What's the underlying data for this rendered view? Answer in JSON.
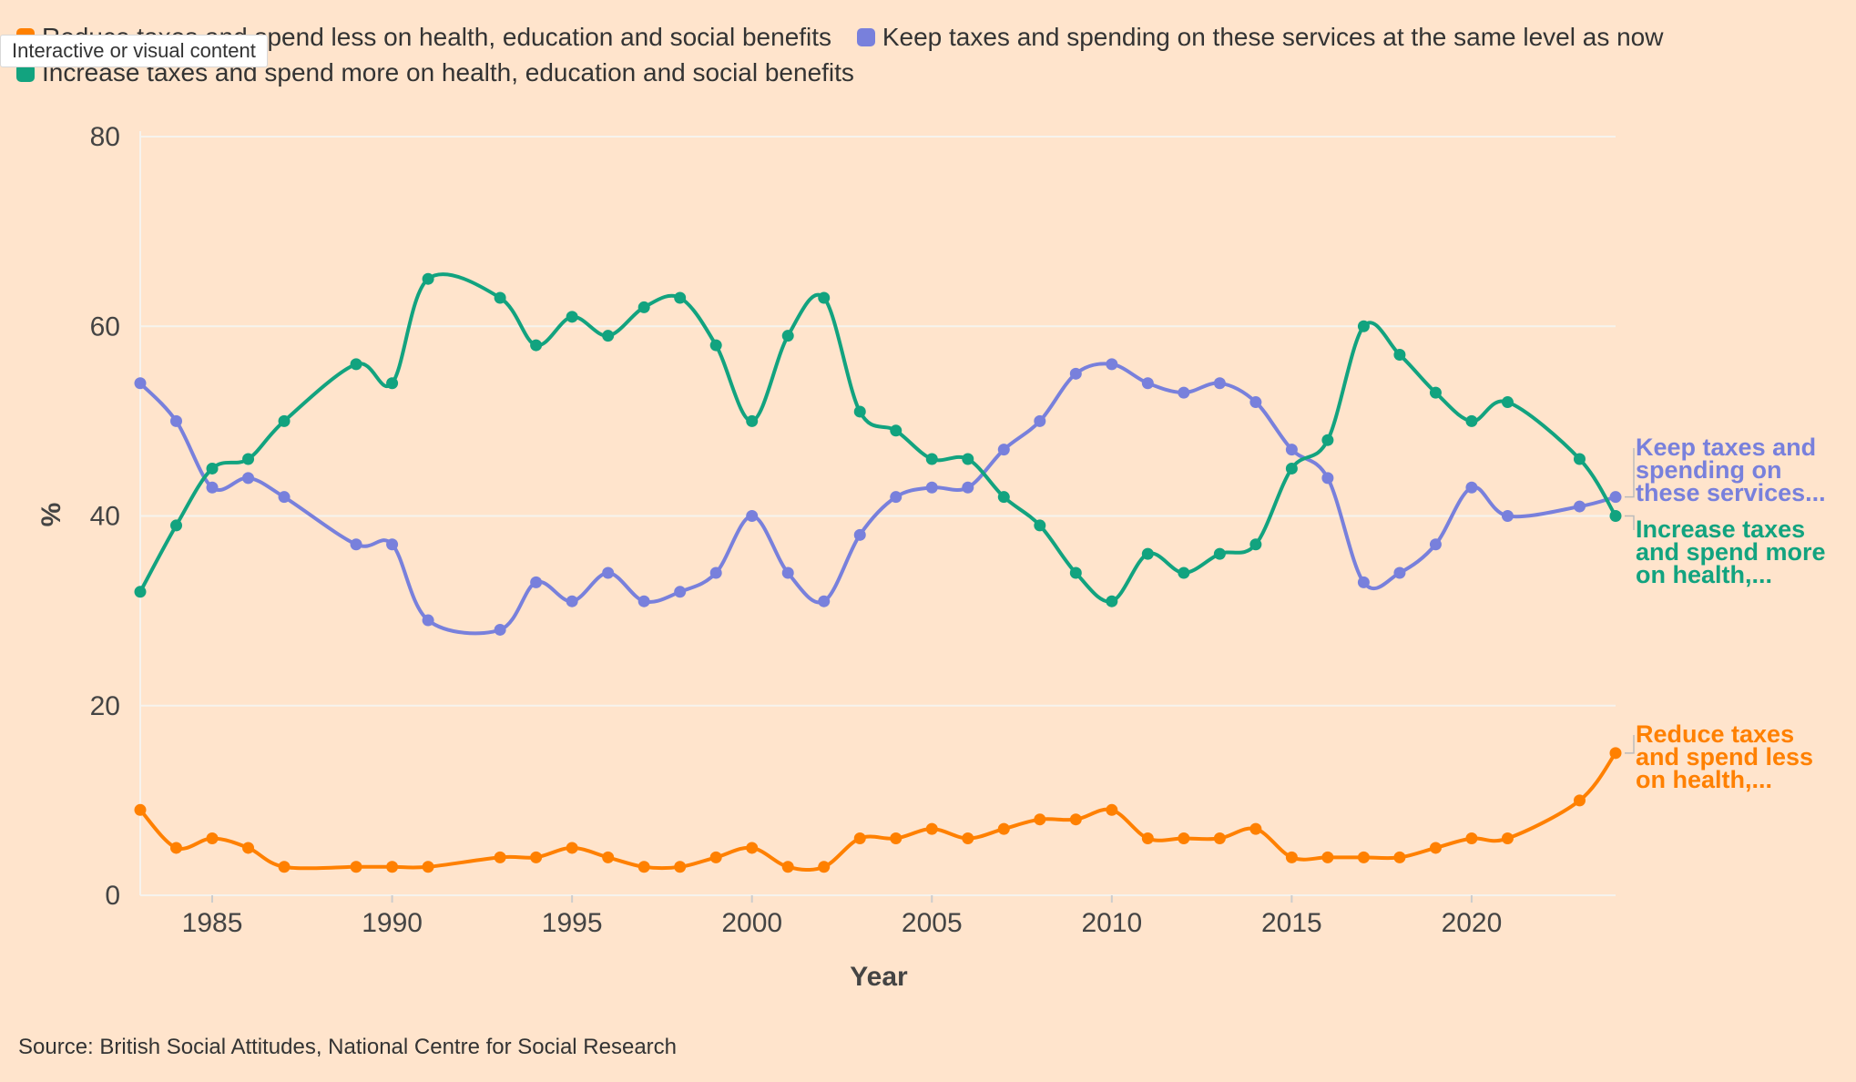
{
  "tooltip": "Interactive or visual content",
  "source": "Source: British Social Attitudes, National Centre for Social Research",
  "chart_data": {
    "type": "line",
    "title": "",
    "xlabel": "Year",
    "ylabel": "%",
    "xlim": [
      1983,
      2024
    ],
    "ylim": [
      0,
      80
    ],
    "x_ticks": [
      1985,
      1990,
      1995,
      2000,
      2005,
      2010,
      2015,
      2020
    ],
    "y_ticks": [
      0,
      20,
      40,
      60,
      80
    ],
    "grid": true,
    "legend_position": "top",
    "series": [
      {
        "name": "Reduce taxes and spend less on health, education and social benefits",
        "end_label": [
          "Reduce taxes",
          "and spend less",
          "on health,..."
        ],
        "color": "#FF8000",
        "x": [
          1983,
          1984,
          1985,
          1986,
          1987,
          1989,
          1990,
          1991,
          1993,
          1994,
          1995,
          1996,
          1997,
          1998,
          1999,
          2000,
          2001,
          2002,
          2003,
          2004,
          2005,
          2006,
          2007,
          2008,
          2009,
          2010,
          2011,
          2012,
          2013,
          2014,
          2015,
          2016,
          2017,
          2018,
          2019,
          2020,
          2021,
          2023,
          2024
        ],
        "values": [
          9,
          5,
          6,
          5,
          3,
          3,
          3,
          3,
          4,
          4,
          5,
          4,
          3,
          3,
          4,
          5,
          3,
          3,
          6,
          6,
          7,
          6,
          7,
          8,
          8,
          9,
          6,
          6,
          6,
          7,
          4,
          4,
          4,
          4,
          5,
          6,
          6,
          10,
          15
        ]
      },
      {
        "name": "Keep taxes and spending on these services at the same level as now",
        "end_label": [
          "Keep taxes and",
          "spending on",
          "these services..."
        ],
        "color": "#7880DC",
        "x": [
          1983,
          1984,
          1985,
          1986,
          1987,
          1989,
          1990,
          1991,
          1993,
          1994,
          1995,
          1996,
          1997,
          1998,
          1999,
          2000,
          2001,
          2002,
          2003,
          2004,
          2005,
          2006,
          2007,
          2008,
          2009,
          2010,
          2011,
          2012,
          2013,
          2014,
          2015,
          2016,
          2017,
          2018,
          2019,
          2020,
          2021,
          2023,
          2024
        ],
        "values": [
          54,
          50,
          43,
          44,
          42,
          37,
          37,
          29,
          28,
          33,
          31,
          34,
          31,
          32,
          34,
          40,
          34,
          31,
          38,
          42,
          43,
          43,
          47,
          50,
          55,
          56,
          54,
          53,
          54,
          52,
          47,
          44,
          33,
          34,
          37,
          43,
          40,
          41,
          42
        ]
      },
      {
        "name": "Increase taxes and spend more on health, education and social benefits",
        "end_label": [
          "Increase taxes",
          "and spend more",
          "on health,..."
        ],
        "color": "#12A37F",
        "x": [
          1983,
          1984,
          1985,
          1986,
          1987,
          1989,
          1990,
          1991,
          1993,
          1994,
          1995,
          1996,
          1997,
          1998,
          1999,
          2000,
          2001,
          2002,
          2003,
          2004,
          2005,
          2006,
          2007,
          2008,
          2009,
          2010,
          2011,
          2012,
          2013,
          2014,
          2015,
          2016,
          2017,
          2018,
          2019,
          2020,
          2021,
          2023,
          2024
        ],
        "values": [
          32,
          39,
          45,
          46,
          50,
          56,
          54,
          65,
          63,
          58,
          61,
          59,
          62,
          63,
          58,
          50,
          59,
          63,
          51,
          49,
          46,
          46,
          42,
          39,
          34,
          31,
          36,
          34,
          36,
          37,
          45,
          48,
          60,
          57,
          53,
          50,
          52,
          46,
          40
        ]
      }
    ]
  }
}
